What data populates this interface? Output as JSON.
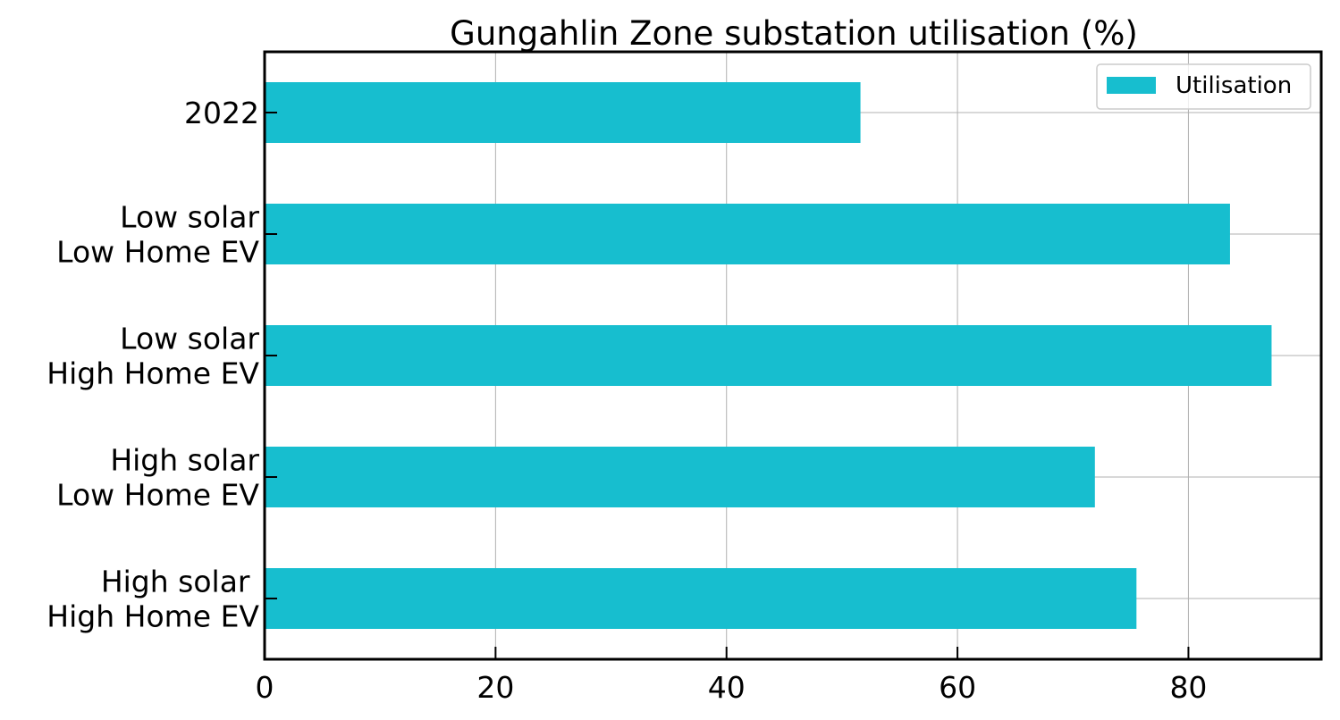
{
  "chart_data": {
    "type": "bar",
    "orientation": "horizontal",
    "title": "Gungahlin Zone substation utilisation (%)",
    "xlabel": "",
    "ylabel": "",
    "categories": [
      [
        "2022"
      ],
      [
        "Low solar",
        "Low Home EV"
      ],
      [
        "Low solar",
        "High Home EV"
      ],
      [
        "High solar",
        "Low Home EV"
      ],
      [
        "High solar ",
        "High Home EV"
      ]
    ],
    "series": [
      {
        "name": "Utilisation",
        "values": [
          51.6,
          83.6,
          87.2,
          71.9,
          75.5
        ],
        "color": "#17becf"
      }
    ],
    "xlim": [
      0,
      91.5
    ],
    "xticks": [
      0,
      20,
      40,
      60,
      80
    ],
    "grid": true,
    "legend_position": "top-right"
  }
}
